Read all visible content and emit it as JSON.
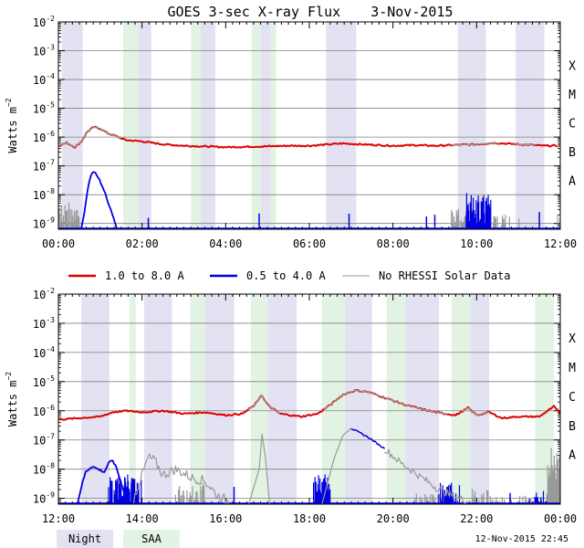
{
  "chart_data": {
    "type": "line",
    "title": "GOES 3-sec X-ray Flux",
    "date": "3-Nov-2015",
    "ylabel": "Watts",
    "ylabel_unit": "m",
    "ylabel_exp": "−2",
    "y_tick_base": "10",
    "y_tick_exponents": [
      "-9",
      "-8",
      "-7",
      "-6",
      "-5",
      "-4",
      "-3",
      "-2"
    ],
    "ylim_log": [
      -9.2,
      -2
    ],
    "class_labels": [
      {
        "label": "A",
        "level": -8
      },
      {
        "label": "B",
        "level": -7
      },
      {
        "label": "C",
        "level": -6
      },
      {
        "label": "M",
        "level": -5
      },
      {
        "label": "X",
        "level": -4
      }
    ],
    "legend": [
      {
        "name": "1.0 to 8.0 A",
        "color": "#e00000"
      },
      {
        "name": "0.5 to 4.0 A",
        "color": "#0000e0"
      },
      {
        "name": "No RHESSI Solar Data",
        "color": "#999999"
      }
    ],
    "shading_legend": [
      {
        "name": "Night",
        "color": "#e2e2f2"
      },
      {
        "name": "SAA",
        "color": "#e3f3e3"
      }
    ],
    "footer": "12-Nov-2015 22:45",
    "panels": [
      {
        "xrange_hours": [
          0,
          12
        ],
        "xticks": [
          {
            "h": 0,
            "label": "00:00"
          },
          {
            "h": 2,
            "label": "02:00"
          },
          {
            "h": 4,
            "label": "04:00"
          },
          {
            "h": 6,
            "label": "06:00"
          },
          {
            "h": 8,
            "label": "08:00"
          },
          {
            "h": 10,
            "label": "10:00"
          },
          {
            "h": 12,
            "label": "12:00"
          }
        ],
        "night": [
          [
            0.08,
            0.58
          ],
          [
            1.92,
            2.22
          ],
          [
            3.4,
            3.75
          ],
          [
            4.83,
            5.08
          ],
          [
            6.4,
            7.12
          ],
          [
            9.55,
            10.22
          ],
          [
            10.93,
            11.62
          ]
        ],
        "saa": [
          [
            1.55,
            1.92
          ],
          [
            3.17,
            3.4
          ],
          [
            4.62,
            4.83
          ],
          [
            5.08,
            5.2
          ]
        ],
        "long": [
          [
            0,
            -6.3
          ],
          [
            0.2,
            -6.2
          ],
          [
            0.4,
            -6.35
          ],
          [
            0.55,
            -6.15
          ],
          [
            0.7,
            -5.8
          ],
          [
            0.85,
            -5.65
          ],
          [
            1.0,
            -5.7
          ],
          [
            1.15,
            -5.85
          ],
          [
            1.35,
            -5.95
          ],
          [
            1.6,
            -6.1
          ],
          [
            2.0,
            -6.15
          ],
          [
            2.5,
            -6.25
          ],
          [
            3.0,
            -6.3
          ],
          [
            4.0,
            -6.35
          ],
          [
            5.0,
            -6.32
          ],
          [
            5.5,
            -6.3
          ],
          [
            6.0,
            -6.3
          ],
          [
            6.8,
            -6.22
          ],
          [
            7.2,
            -6.25
          ],
          [
            8.0,
            -6.3
          ],
          [
            8.5,
            -6.28
          ],
          [
            9.0,
            -6.3
          ],
          [
            10.0,
            -6.25
          ],
          [
            10.4,
            -6.2
          ],
          [
            11.0,
            -6.25
          ],
          [
            11.6,
            -6.3
          ],
          [
            12.0,
            -6.3
          ]
        ],
        "long_gray": [
          [
            [
              0,
              1.5
            ]
          ],
          [
            [
              9.4,
              10.55
            ],
            [
              10.9,
              11.4
            ],
            [
              11.9,
              12.0
            ]
          ]
        ],
        "short": [
          [
            0.55,
            -9.2
          ],
          [
            0.62,
            -8.6
          ],
          [
            0.7,
            -7.8
          ],
          [
            0.78,
            -7.3
          ],
          [
            0.85,
            -7.2
          ],
          [
            0.95,
            -7.4
          ],
          [
            1.05,
            -7.7
          ],
          [
            1.15,
            -8.1
          ],
          [
            1.25,
            -8.5
          ],
          [
            1.32,
            -8.8
          ],
          [
            1.4,
            -9.2
          ]
        ],
        "short_noise": [
          [
            0.0,
            0.5,
            -8.2,
            "#999999"
          ],
          [
            9.4,
            9.85,
            -8.3,
            "#999999"
          ],
          [
            9.75,
            10.35,
            -7.9,
            "#0000e0"
          ],
          [
            10.4,
            11.1,
            -8.6,
            "#999999"
          ],
          [
            11.9,
            12.0,
            -8.5,
            "#999999"
          ]
        ],
        "baseline_spikes": [
          2.15,
          4.8,
          6.95,
          8.8,
          9.0,
          11.5
        ]
      },
      {
        "xrange_hours": [
          12,
          24
        ],
        "xticks": [
          {
            "h": 12,
            "label": "12:00"
          },
          {
            "h": 14,
            "label": "14:00"
          },
          {
            "h": 16,
            "label": "16:00"
          },
          {
            "h": 18,
            "label": "18:00"
          },
          {
            "h": 20,
            "label": "20:00"
          },
          {
            "h": 22,
            "label": "22:00"
          },
          {
            "h": 24,
            "label": "00:00"
          }
        ],
        "night": [
          [
            12.55,
            13.22
          ],
          [
            14.05,
            14.72
          ],
          [
            15.5,
            16.2
          ],
          [
            17.0,
            17.7
          ],
          [
            18.85,
            19.5
          ],
          [
            20.3,
            21.1
          ],
          [
            21.85,
            22.3
          ]
        ],
        "saa": [
          [
            13.7,
            13.85
          ],
          [
            15.15,
            15.5
          ],
          [
            16.6,
            17.0
          ],
          [
            18.3,
            18.85
          ],
          [
            19.85,
            20.3
          ],
          [
            21.4,
            21.85
          ],
          [
            23.4,
            23.85
          ]
        ],
        "long": [
          [
            12,
            -6.3
          ],
          [
            12.5,
            -6.25
          ],
          [
            13.0,
            -6.2
          ],
          [
            13.3,
            -6.05
          ],
          [
            13.6,
            -6.0
          ],
          [
            14.0,
            -6.05
          ],
          [
            14.5,
            -6.0
          ],
          [
            15.0,
            -6.1
          ],
          [
            15.5,
            -6.05
          ],
          [
            16.0,
            -6.15
          ],
          [
            16.4,
            -6.1
          ],
          [
            16.7,
            -5.8
          ],
          [
            16.85,
            -5.45
          ],
          [
            17.0,
            -5.8
          ],
          [
            17.3,
            -6.1
          ],
          [
            17.8,
            -6.2
          ],
          [
            18.2,
            -6.1
          ],
          [
            18.5,
            -5.8
          ],
          [
            18.8,
            -5.45
          ],
          [
            19.1,
            -5.3
          ],
          [
            19.4,
            -5.35
          ],
          [
            19.8,
            -5.55
          ],
          [
            20.3,
            -5.8
          ],
          [
            21.0,
            -6.05
          ],
          [
            21.5,
            -6.15
          ],
          [
            21.8,
            -5.9
          ],
          [
            22.0,
            -6.15
          ],
          [
            22.3,
            -6.05
          ],
          [
            22.6,
            -6.25
          ],
          [
            23.0,
            -6.2
          ],
          [
            23.5,
            -6.2
          ],
          [
            23.85,
            -5.85
          ],
          [
            24.0,
            -6.1
          ]
        ],
        "long_gray": [
          [
            [
              16.55,
              17.3
            ],
            [
              18.35,
              21.3
            ],
            [
              21.65,
              22.3
            ]
          ]
        ],
        "short": [
          [
            12.45,
            -9.2
          ],
          [
            12.55,
            -8.6
          ],
          [
            12.65,
            -8.1
          ],
          [
            12.8,
            -7.9
          ],
          [
            12.95,
            -8.0
          ],
          [
            13.1,
            -8.1
          ],
          [
            13.2,
            -7.8
          ],
          [
            13.3,
            -7.7
          ],
          [
            13.4,
            -8.0
          ],
          [
            13.55,
            -8.7
          ],
          [
            13.7,
            -9.2
          ]
        ],
        "short_gray": [
          [
            13.8,
            -9.0
          ],
          [
            14.0,
            -8.2
          ],
          [
            14.15,
            -7.6
          ],
          [
            14.3,
            -7.7
          ],
          [
            14.5,
            -8.2
          ],
          [
            14.8,
            -8.0
          ],
          [
            15.2,
            -8.3
          ],
          [
            15.5,
            -8.4
          ],
          [
            15.8,
            -8.9
          ],
          [
            16.2,
            -9.2
          ]
        ],
        "flare1": [
          [
            16.55,
            -9.2
          ],
          [
            16.8,
            -8.0
          ],
          [
            16.87,
            -6.8
          ],
          [
            16.95,
            -7.6
          ],
          [
            17.05,
            -9.2
          ]
        ],
        "flare2": [
          [
            18.3,
            -9.2
          ],
          [
            18.45,
            -8.4
          ],
          [
            18.6,
            -7.6
          ],
          [
            18.8,
            -6.85
          ],
          [
            19.0,
            -6.6
          ],
          [
            19.4,
            -6.9
          ],
          [
            19.8,
            -7.3
          ],
          [
            20.2,
            -7.8
          ],
          [
            20.6,
            -8.2
          ],
          [
            21.0,
            -8.6
          ],
          [
            21.4,
            -8.9
          ],
          [
            21.8,
            -9.1
          ]
        ],
        "short_noise": [
          [
            13.2,
            14.0,
            -8.1,
            "#0000e0"
          ],
          [
            14.8,
            15.5,
            -8.4,
            "#999999"
          ],
          [
            18.1,
            18.5,
            -8.0,
            "#0000e0"
          ],
          [
            20.5,
            21.3,
            -8.7,
            "#999999"
          ],
          [
            21.0,
            21.6,
            -8.4,
            "#0000e0"
          ],
          [
            21.9,
            22.3,
            -8.6,
            "#999999"
          ],
          [
            22.3,
            23.4,
            -8.8,
            "#999999"
          ],
          [
            23.2,
            23.7,
            -8.7,
            "#0000e0"
          ],
          [
            23.7,
            24.0,
            -7.2,
            "#999999"
          ]
        ],
        "baseline_spikes": [
          16.2,
          21.2,
          22.8
        ]
      }
    ]
  }
}
